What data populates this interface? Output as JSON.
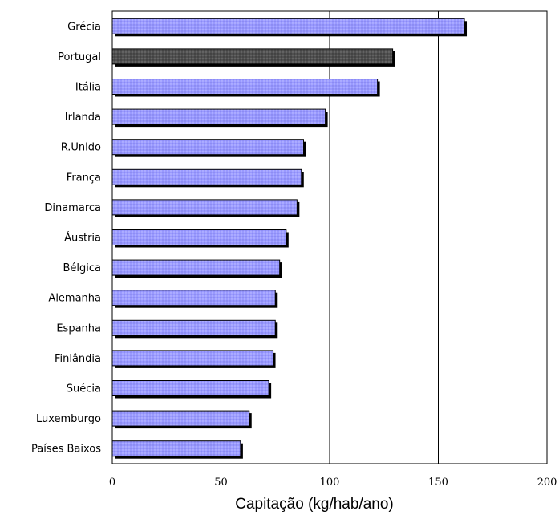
{
  "chart_data": {
    "type": "bar",
    "orientation": "horizontal",
    "categories": [
      "Grécia",
      "Portugal",
      "Itália",
      "Irlanda",
      "R.Unido",
      "França",
      "Dinamarca",
      "Áustria",
      "Bélgica",
      "Alemanha",
      "Espanha",
      "Finlândia",
      "Suécia",
      "Luxemburgo",
      "Países Baixos"
    ],
    "values": [
      162,
      129,
      122,
      98,
      88,
      87,
      85,
      80,
      77,
      75,
      75,
      74,
      72,
      63,
      59
    ],
    "highlight": "Portugal",
    "xlabel": "Capitação (kg/hab/ano)",
    "ylabel": "",
    "xlim": [
      0,
      200
    ],
    "xticks": [
      0,
      50,
      100,
      150,
      200
    ],
    "grid": "vertical",
    "colors": {
      "bar": "#9999ff",
      "bar_highlight": "#505050",
      "bar_edge": "#000000",
      "shadow": "#000000",
      "grid": "#000000",
      "frame": "#000000"
    }
  }
}
